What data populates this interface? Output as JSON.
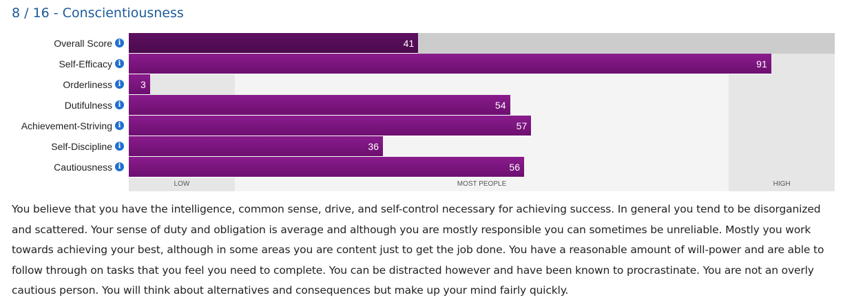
{
  "title": "8 / 16 - Conscientiousness",
  "chart_data": {
    "type": "bar",
    "orientation": "horizontal",
    "title": "8 / 16 - Conscientiousness",
    "categories": [
      "Overall Score",
      "Self-Efficacy",
      "Orderliness",
      "Dutifulness",
      "Achievement-Striving",
      "Self-Discipline",
      "Cautiousness"
    ],
    "values": [
      41,
      91,
      3,
      54,
      57,
      36,
      56
    ],
    "xlim": [
      0,
      100
    ],
    "bands": [
      {
        "label": "LOW",
        "from": 0,
        "to": 15
      },
      {
        "label": "MOST PEOPLE",
        "from": 15,
        "to": 85
      },
      {
        "label": "HIGH",
        "from": 85,
        "to": 100
      }
    ],
    "colors": {
      "overall_bar": "#4f0b52",
      "facet_bar": "#7a147d",
      "overall_track": "#cccccc",
      "band_low": "#e6e6e6",
      "band_most": "#f4f4f4",
      "band_high": "#e6e6e6"
    }
  },
  "description": "You believe that you have the intelligence, common sense, drive, and self-control necessary for achieving success. In general you tend to be disorganized and scattered. Your sense of duty and obligation is average and although you are mostly responsible you can sometimes be unreliable. Mostly you work towards achieving your best, although in some areas you are content just to get the job done. You have a reasonable amount of will-power and are able to follow through on tasks that you feel you need to complete. You can be distracted however and have been known to procrastinate. You are not an overly cautious person. You will think about alternatives and consequences but make up your mind fairly quickly."
}
